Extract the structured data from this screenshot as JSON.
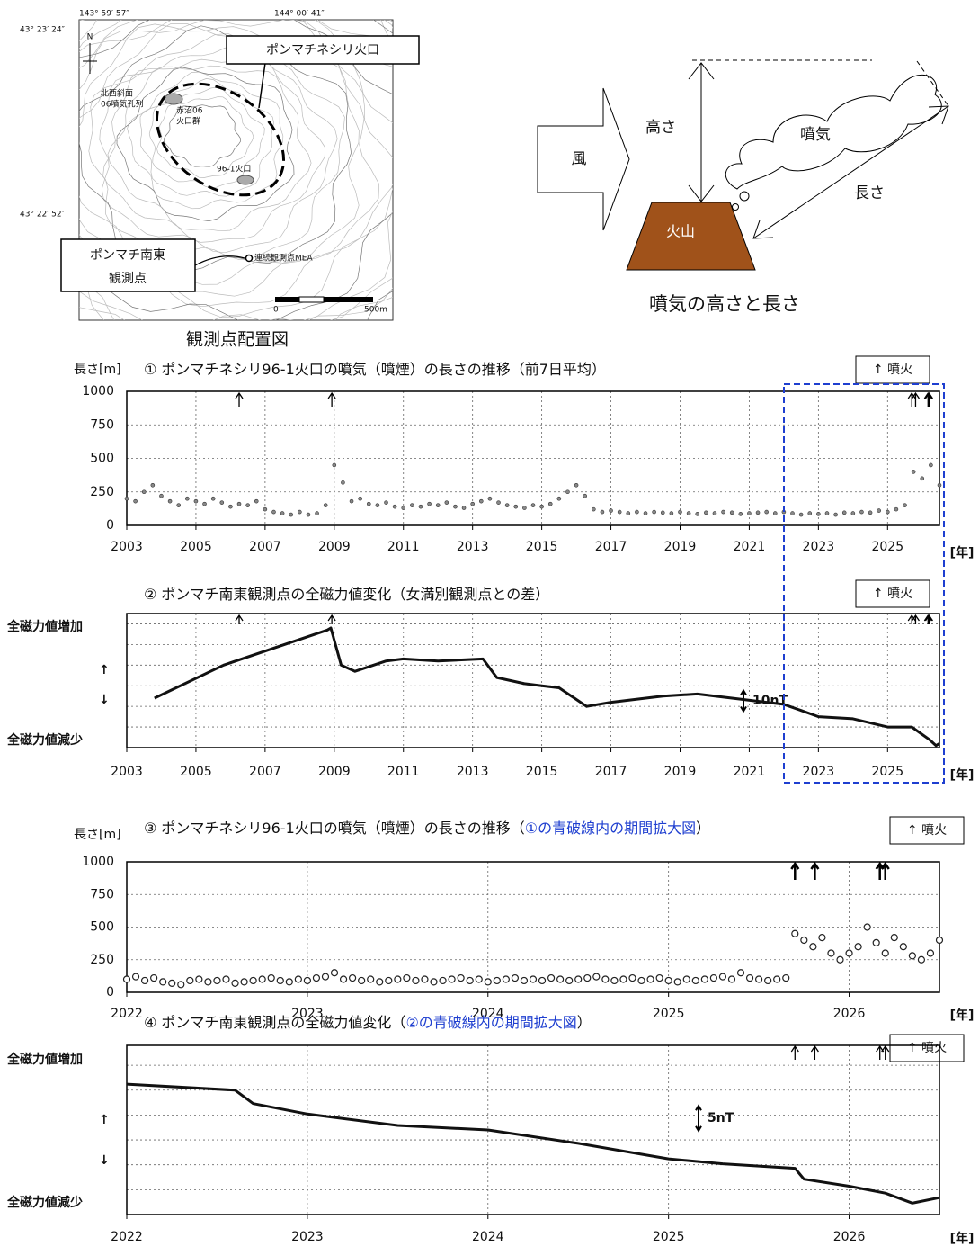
{
  "map": {
    "lon_labels": [
      "143° 59′ 57″",
      "144° 00′ 41″"
    ],
    "lat_labels": [
      "43° 23′ 24″",
      "43° 22′ 52″"
    ],
    "north": "N",
    "crater_label": "ポンマチネシリ火口",
    "northwest_label": [
      "北西斜面",
      "06噴気孔列"
    ],
    "akanuma_label": [
      "赤沼06",
      "火口群"
    ],
    "vent_label": "96-1火口",
    "station_label": [
      "ポンマチ南東",
      "観測点"
    ],
    "mea_label": "連続観測点MEA",
    "scale_labels": [
      "0",
      "500m"
    ],
    "caption": "観測点配置図"
  },
  "diagram": {
    "wind": "風",
    "height": "高さ",
    "plume": "噴気",
    "length": "長さ",
    "volcano": "火山",
    "caption": "噴気の高さと長さ"
  },
  "chart_data": [
    {
      "type": "scatter",
      "title": "① ポンマチネシリ96-1火口の噴気（噴煙）の長さの推移（前7日平均）",
      "y_label": "長さ[m]",
      "x_unit": "[年]",
      "legend": "↑ 噴火",
      "eruptions": [
        2006.25,
        2008.93,
        2025.7,
        2025.81,
        2026.17,
        2026.2
      ],
      "x": [
        2003,
        2003.25,
        2003.5,
        2003.75,
        2004,
        2004.25,
        2004.5,
        2004.75,
        2005,
        2005.25,
        2005.5,
        2005.75,
        2006,
        2006.25,
        2006.5,
        2006.75,
        2007,
        2007.25,
        2007.5,
        2007.75,
        2008,
        2008.25,
        2008.5,
        2008.75,
        2009,
        2009.25,
        2009.5,
        2009.75,
        2010,
        2010.25,
        2010.5,
        2010.75,
        2011,
        2011.25,
        2011.5,
        2011.75,
        2012,
        2012.25,
        2012.5,
        2012.75,
        2013,
        2013.25,
        2013.5,
        2013.75,
        2014,
        2014.25,
        2014.5,
        2014.75,
        2015,
        2015.25,
        2015.5,
        2015.75,
        2016,
        2016.25,
        2016.5,
        2016.75,
        2017,
        2017.25,
        2017.5,
        2017.75,
        2018,
        2018.25,
        2018.5,
        2018.75,
        2019,
        2019.25,
        2019.5,
        2019.75,
        2020,
        2020.25,
        2020.5,
        2020.75,
        2021,
        2021.25,
        2021.5,
        2021.75,
        2022,
        2022.25,
        2022.5,
        2022.75,
        2023,
        2023.25,
        2023.5,
        2023.75,
        2024,
        2024.25,
        2024.5,
        2024.75,
        2025,
        2025.25,
        2025.5,
        2025.75,
        2026,
        2026.25,
        2026.5
      ],
      "values": [
        200,
        180,
        250,
        300,
        220,
        180,
        150,
        200,
        180,
        160,
        200,
        170,
        140,
        160,
        150,
        180,
        120,
        100,
        90,
        80,
        100,
        80,
        90,
        150,
        450,
        320,
        180,
        200,
        160,
        150,
        170,
        140,
        130,
        150,
        140,
        160,
        150,
        170,
        140,
        130,
        160,
        180,
        200,
        170,
        150,
        140,
        130,
        150,
        140,
        160,
        200,
        250,
        300,
        220,
        120,
        100,
        110,
        100,
        90,
        100,
        90,
        100,
        95,
        90,
        100,
        90,
        85,
        95,
        90,
        100,
        95,
        85,
        90,
        95,
        100,
        90,
        100,
        90,
        80,
        90,
        85,
        90,
        80,
        95,
        90,
        100,
        95,
        110,
        100,
        120,
        150,
        400,
        350,
        450,
        300
      ],
      "xlim": [
        2003,
        2026.5
      ],
      "ylim": [
        0,
        1000
      ],
      "xticks": [
        2003,
        2005,
        2007,
        2009,
        2011,
        2013,
        2015,
        2017,
        2019,
        2021,
        2023,
        2025
      ],
      "yticks": [
        0,
        250,
        500,
        750,
        1000
      ],
      "color": "#333333",
      "grid": true
    },
    {
      "type": "line",
      "title": "② ポンマチ南東観測点の全磁力値変化（女満別観測点との差）",
      "y_labels": [
        "全磁力値増加",
        "↑",
        "↓",
        "全磁力値減少"
      ],
      "scale_bar": {
        "value": 10,
        "label": "10nT"
      },
      "x_unit": "[年]",
      "legend": "↑ 噴火",
      "eruptions": [
        2006.25,
        2008.93,
        2025.7,
        2025.81,
        2026.17,
        2026.2
      ],
      "x": [
        2003.8,
        2005.8,
        2008.8,
        2008.9,
        2009.2,
        2009.6,
        2010.5,
        2011,
        2012,
        2013.3,
        2013.7,
        2014.5,
        2015,
        2015.5,
        2016.3,
        2017,
        2018.5,
        2019.5,
        2020.5,
        2021.5,
        2022,
        2022.5,
        2023,
        2024,
        2025,
        2025.7,
        2026.2,
        2026.4,
        2026.5
      ],
      "values": [
        24,
        40,
        57,
        58,
        40,
        37,
        42,
        43,
        42,
        43,
        34,
        31,
        30,
        29,
        20,
        22,
        25,
        26,
        24,
        22,
        21,
        18,
        15,
        14,
        10,
        10,
        4,
        1,
        2
      ],
      "xlim": [
        2003,
        2026.5
      ],
      "ylim": [
        0,
        65
      ],
      "xticks": [
        2003,
        2005,
        2007,
        2009,
        2011,
        2013,
        2015,
        2017,
        2019,
        2021,
        2023,
        2025
      ],
      "ygrid": [
        0,
        10,
        20,
        30,
        40,
        50,
        60
      ],
      "color": "#111111",
      "grid": true
    },
    {
      "type": "scatter",
      "title": "③ ポンマチネシリ96-1火口の噴気（噴煙）の長さの推移（",
      "title_highlight": "①の青破線内の期間拡大図",
      "title_end": "）",
      "y_label": "長さ[m]",
      "x_unit": "[年]",
      "legend": "↑ 噴火",
      "eruptions": [
        2025.7,
        2025.81,
        2026.17,
        2026.2
      ],
      "x": [
        2022,
        2022.05,
        2022.1,
        2022.15,
        2022.2,
        2022.25,
        2022.3,
        2022.35,
        2022.4,
        2022.45,
        2022.5,
        2022.55,
        2022.6,
        2022.65,
        2022.7,
        2022.75,
        2022.8,
        2022.85,
        2022.9,
        2022.95,
        2023,
        2023.05,
        2023.1,
        2023.15,
        2023.2,
        2023.25,
        2023.3,
        2023.35,
        2023.4,
        2023.45,
        2023.5,
        2023.55,
        2023.6,
        2023.65,
        2023.7,
        2023.75,
        2023.8,
        2023.85,
        2023.9,
        2023.95,
        2024,
        2024.05,
        2024.1,
        2024.15,
        2024.2,
        2024.25,
        2024.3,
        2024.35,
        2024.4,
        2024.45,
        2024.5,
        2024.55,
        2024.6,
        2024.65,
        2024.7,
        2024.75,
        2024.8,
        2024.85,
        2024.9,
        2024.95,
        2025,
        2025.05,
        2025.1,
        2025.15,
        2025.2,
        2025.25,
        2025.3,
        2025.35,
        2025.4,
        2025.45,
        2025.5,
        2025.55,
        2025.6,
        2025.65,
        2025.7,
        2025.75,
        2025.8,
        2025.85,
        2025.9,
        2025.95,
        2026,
        2026.05,
        2026.1,
        2026.15,
        2026.2,
        2026.25,
        2026.3,
        2026.35,
        2026.4,
        2026.45,
        2026.5
      ],
      "values": [
        100,
        120,
        90,
        110,
        80,
        70,
        60,
        90,
        100,
        80,
        90,
        100,
        70,
        80,
        90,
        100,
        110,
        90,
        80,
        100,
        90,
        110,
        120,
        150,
        100,
        110,
        90,
        100,
        80,
        90,
        100,
        110,
        90,
        100,
        80,
        90,
        100,
        110,
        90,
        100,
        80,
        90,
        100,
        110,
        90,
        100,
        90,
        110,
        100,
        90,
        100,
        110,
        120,
        100,
        90,
        100,
        110,
        90,
        100,
        110,
        90,
        80,
        100,
        90,
        100,
        110,
        120,
        100,
        150,
        110,
        100,
        90,
        100,
        110,
        450,
        400,
        350,
        420,
        300,
        250,
        300,
        350,
        500,
        380,
        300,
        420,
        350,
        280,
        250,
        300,
        400
      ],
      "xlim": [
        2022,
        2026.5
      ],
      "ylim": [
        0,
        1000
      ],
      "xticks": [
        2022,
        2023,
        2024,
        2025,
        2026
      ],
      "yticks": [
        0,
        250,
        500,
        750,
        1000
      ],
      "color": "#222222",
      "grid": true
    },
    {
      "type": "line",
      "title": "④ ポンマチ南東観測点の全磁力値変化（",
      "title_highlight": "②の青破線内の期間拡大図",
      "title_end": "）",
      "y_labels": [
        "全磁力値増加",
        "↑",
        "↓",
        "全磁力値減少"
      ],
      "scale_bar": {
        "value": 5,
        "label": "5nT"
      },
      "legend": "↑ 噴火",
      "x_unit": "[年]",
      "eruptions": [
        2025.7,
        2025.81,
        2026.17,
        2026.2
      ],
      "x": [
        2022,
        2022.6,
        2022.7,
        2023,
        2023.5,
        2024,
        2024.5,
        2025,
        2025.3,
        2025.7,
        2025.75,
        2026,
        2026.2,
        2026.35,
        2026.5
      ],
      "values": [
        26.2,
        25,
        22.3,
        20.2,
        17.9,
        17,
        14.3,
        11.2,
        10.2,
        9.3,
        7.1,
        5.7,
        4.3,
        2.3,
        3.4
      ],
      "xlim": [
        2022,
        2026.5
      ],
      "ylim": [
        0,
        34
      ],
      "xticks": [
        2022,
        2023,
        2024,
        2025,
        2026
      ],
      "ygrid": [
        0,
        5,
        10,
        15,
        20,
        25,
        30
      ],
      "color": "#111111",
      "grid": true
    }
  ]
}
